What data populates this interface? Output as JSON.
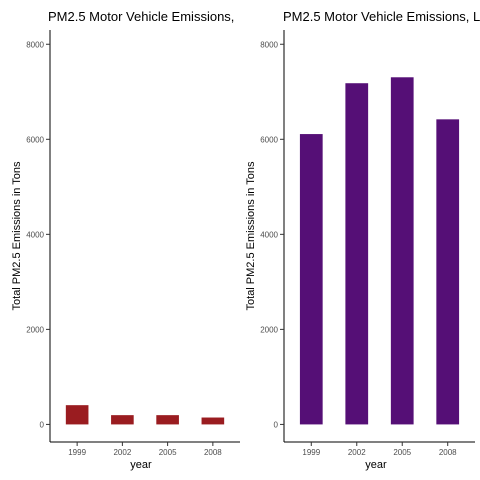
{
  "chart_data": [
    {
      "type": "bar",
      "title": "PM2.5 Motor Vehicle Emissions,",
      "xlabel": "year",
      "ylabel": "Total PM2.5 Emissions in Tons",
      "categories": [
        "1999",
        "2002",
        "2005",
        "2008"
      ],
      "values": [
        405,
        195,
        195,
        145
      ],
      "ylim": [
        -370,
        8300
      ],
      "yticks": [
        0,
        2000,
        4000,
        6000,
        8000
      ],
      "bar_color": "#9a1c20",
      "grid": false
    },
    {
      "type": "bar",
      "title": "PM2.5 Motor Vehicle Emissions, L",
      "xlabel": "year",
      "ylabel": "Total PM2.5 Emissions in Tons",
      "categories": [
        "1999",
        "2002",
        "2005",
        "2008"
      ],
      "values": [
        6110,
        7180,
        7305,
        6420
      ],
      "ylim": [
        -370,
        8300
      ],
      "yticks": [
        0,
        2000,
        4000,
        6000,
        8000
      ],
      "bar_color": "#550f76",
      "grid": false
    }
  ]
}
